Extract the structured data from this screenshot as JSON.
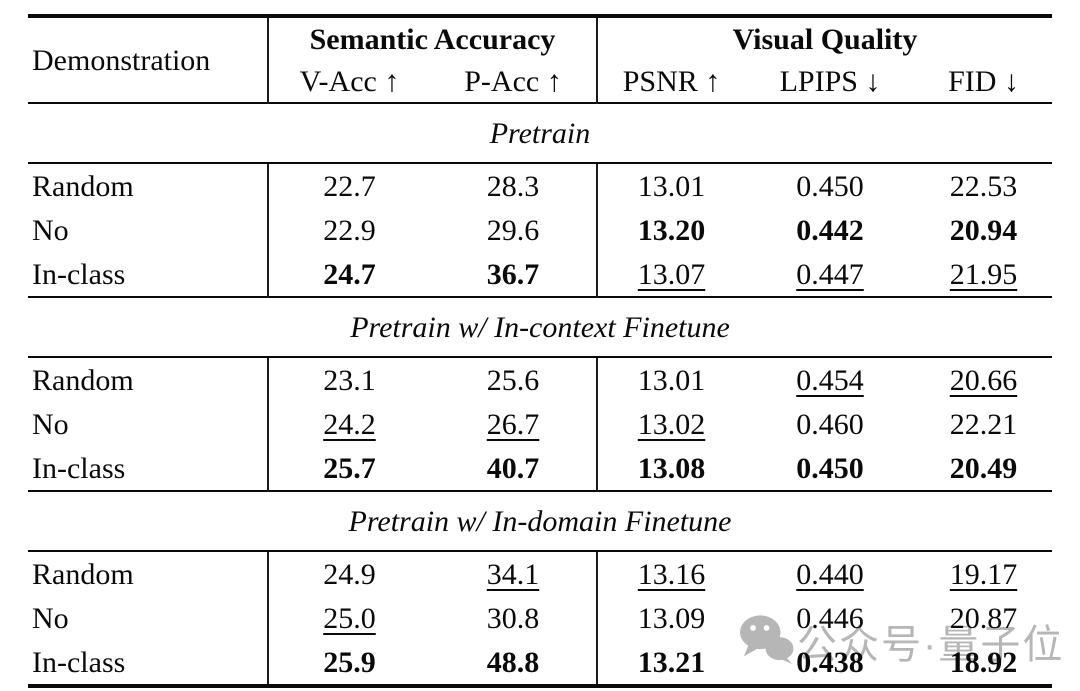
{
  "header": {
    "demonstration": "Demonstration",
    "groups": [
      {
        "label": "Semantic Accuracy",
        "columns": [
          "V-Acc ↑",
          "P-Acc ↑"
        ]
      },
      {
        "label": "Visual Quality",
        "columns": [
          "PSNR ↑",
          "LPIPS ↓",
          "FID ↓"
        ]
      }
    ]
  },
  "sections": [
    {
      "title": "Pretrain",
      "rows": [
        {
          "label": "Random",
          "values": [
            "22.7",
            "28.3",
            "13.01",
            "0.450",
            "22.53"
          ],
          "emphasis": [
            "none",
            "none",
            "none",
            "none",
            "none"
          ]
        },
        {
          "label": "No",
          "values": [
            "22.9",
            "29.6",
            "13.20",
            "0.442",
            "20.94"
          ],
          "emphasis": [
            "none",
            "none",
            "bold",
            "bold",
            "bold"
          ]
        },
        {
          "label": "In-class",
          "values": [
            "24.7",
            "36.7",
            "13.07",
            "0.447",
            "21.95"
          ],
          "emphasis": [
            "bold",
            "bold",
            "underline",
            "underline",
            "underline"
          ]
        }
      ]
    },
    {
      "title": "Pretrain w/ In-context Finetune",
      "rows": [
        {
          "label": "Random",
          "values": [
            "23.1",
            "25.6",
            "13.01",
            "0.454",
            "20.66"
          ],
          "emphasis": [
            "none",
            "none",
            "none",
            "underline",
            "underline"
          ]
        },
        {
          "label": "No",
          "values": [
            "24.2",
            "26.7",
            "13.02",
            "0.460",
            "22.21"
          ],
          "emphasis": [
            "underline",
            "underline",
            "underline",
            "none",
            "none"
          ]
        },
        {
          "label": "In-class",
          "values": [
            "25.7",
            "40.7",
            "13.08",
            "0.450",
            "20.49"
          ],
          "emphasis": [
            "bold",
            "bold",
            "bold",
            "bold",
            "bold"
          ]
        }
      ]
    },
    {
      "title": "Pretrain w/ In-domain Finetune",
      "rows": [
        {
          "label": "Random",
          "values": [
            "24.9",
            "34.1",
            "13.16",
            "0.440",
            "19.17"
          ],
          "emphasis": [
            "none",
            "underline",
            "underline",
            "underline",
            "underline"
          ]
        },
        {
          "label": "No",
          "values": [
            "25.0",
            "30.8",
            "13.09",
            "0.446",
            "20.87"
          ],
          "emphasis": [
            "underline",
            "none",
            "none",
            "none",
            "none"
          ]
        },
        {
          "label": "In-class",
          "values": [
            "25.9",
            "48.8",
            "13.21",
            "0.438",
            "18.92"
          ],
          "emphasis": [
            "bold",
            "bold",
            "bold",
            "bold",
            "bold"
          ]
        }
      ]
    }
  ],
  "watermark": {
    "icon": "wechat-logo-icon",
    "text": "公众号·量子位",
    "color": "#b6b6b6"
  }
}
